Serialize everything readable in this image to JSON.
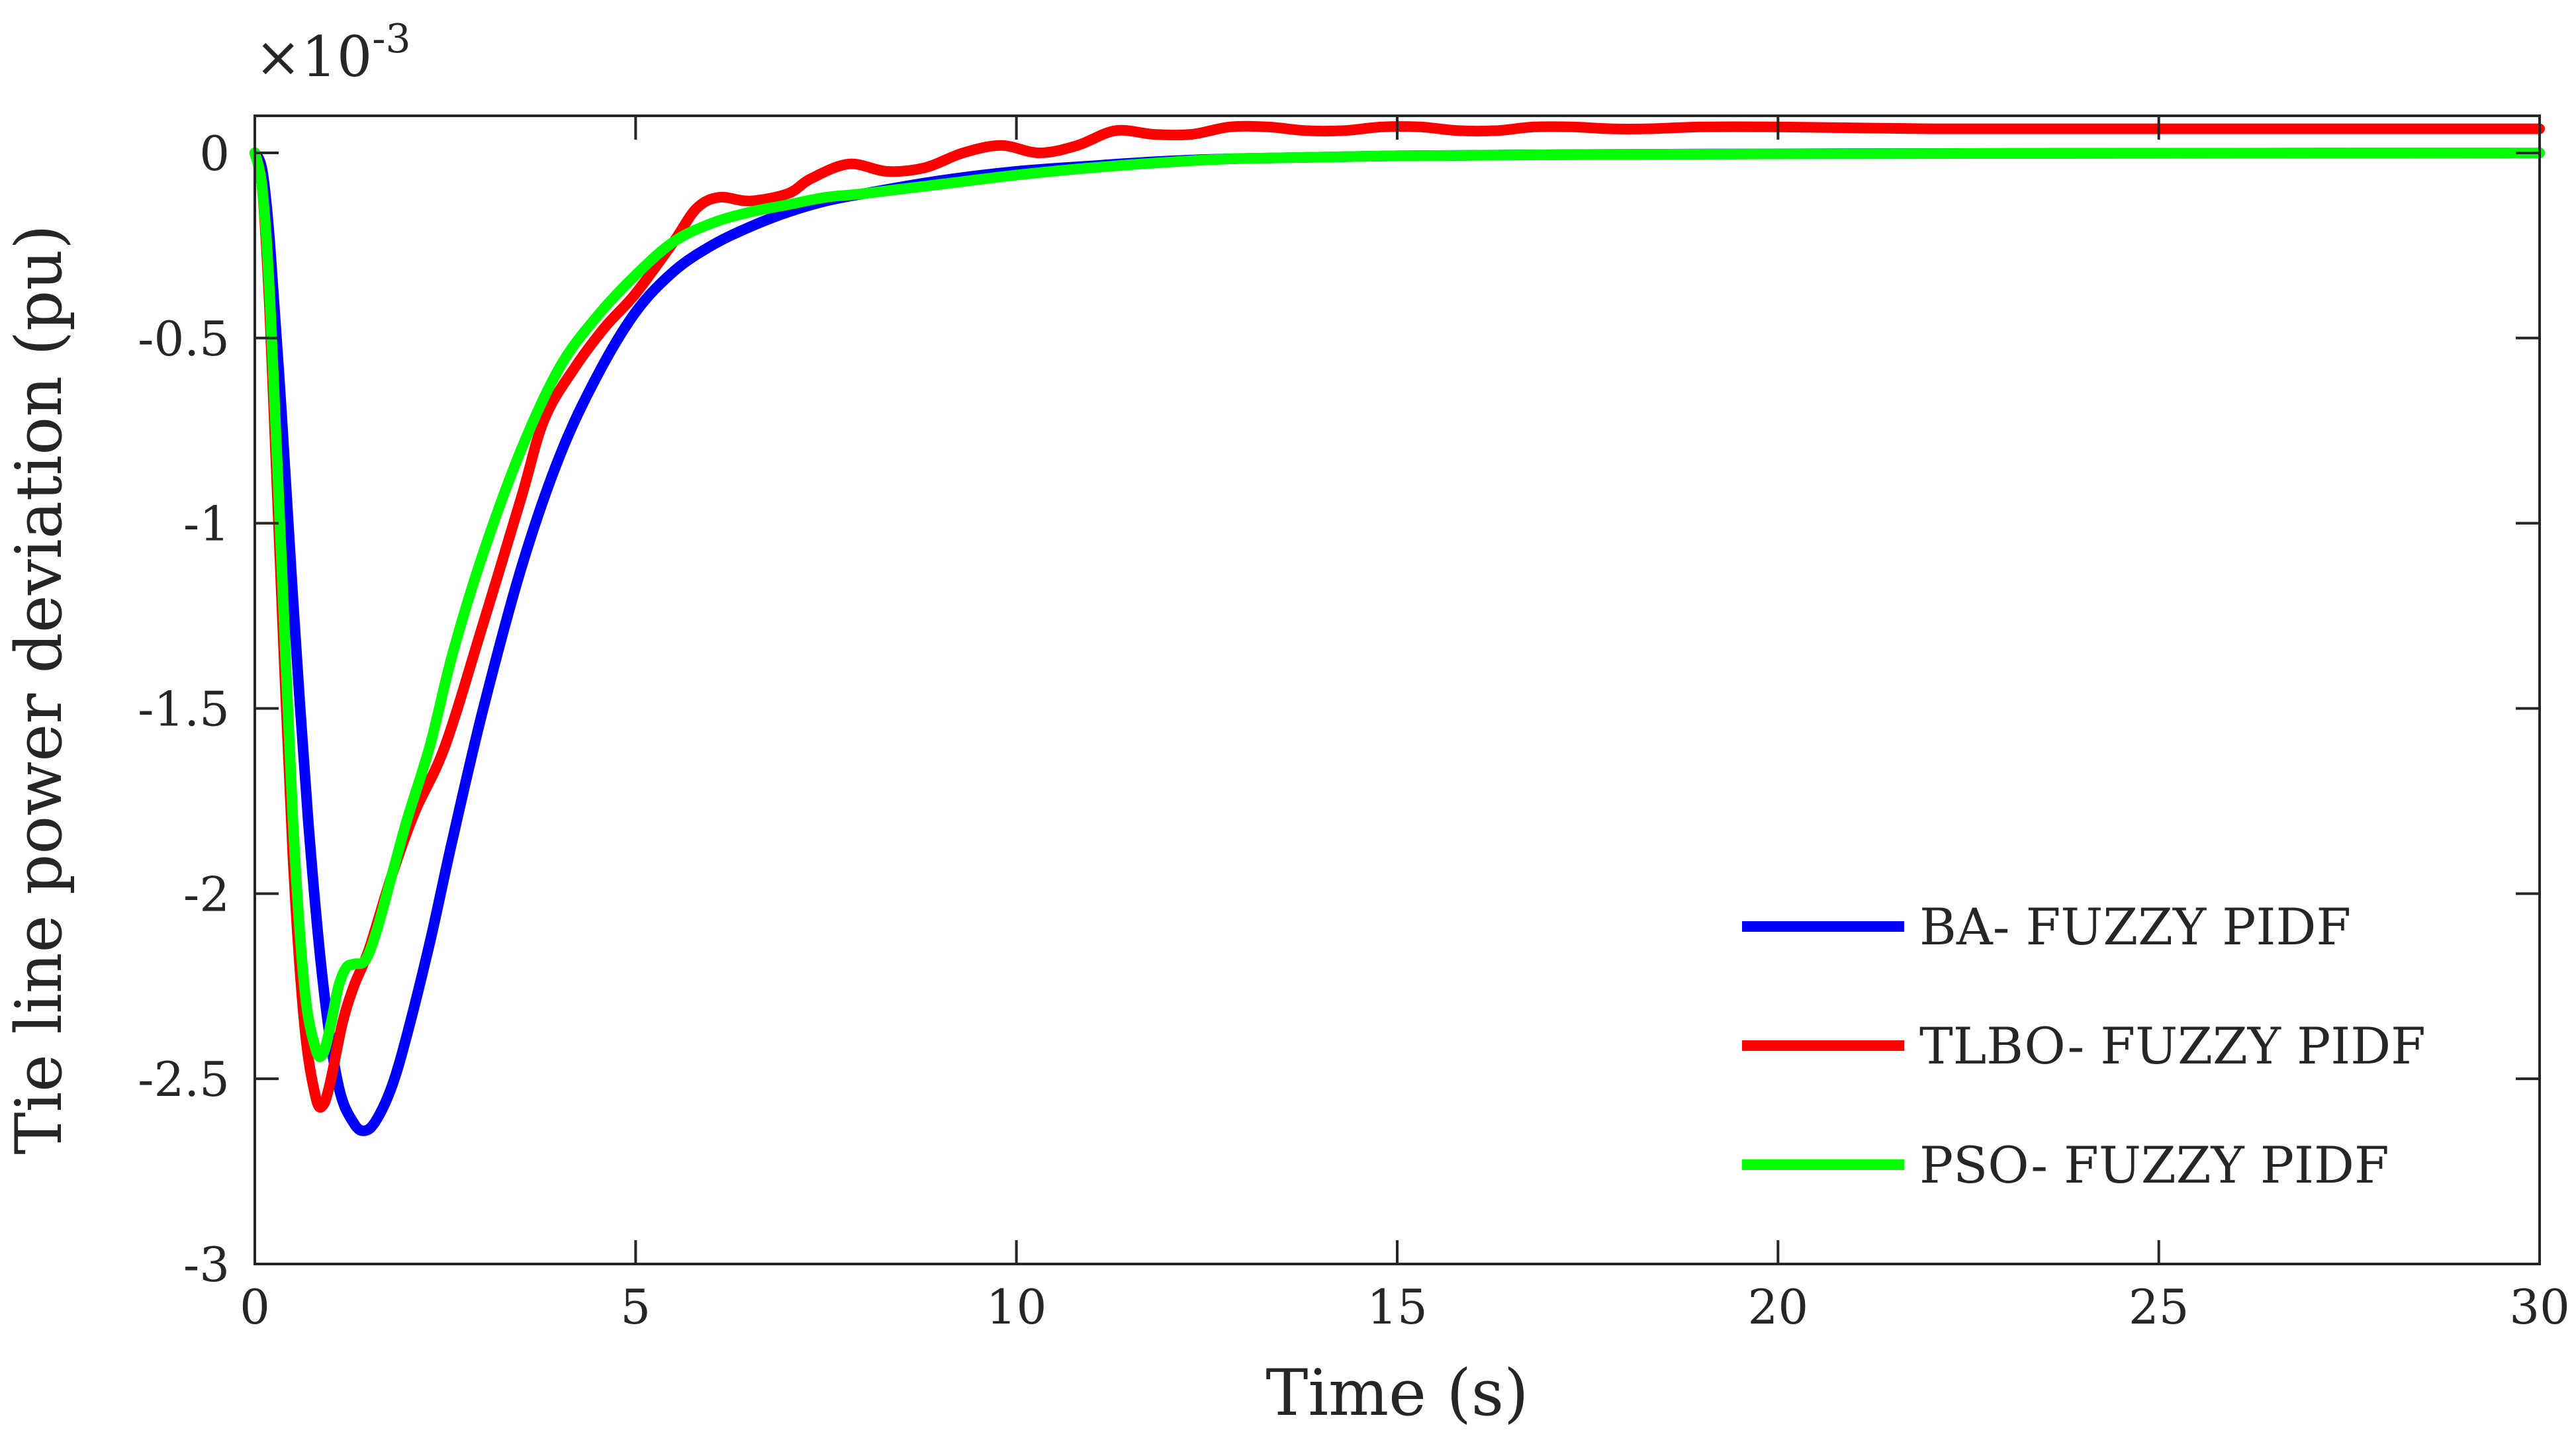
{
  "chart_data": {
    "type": "line",
    "title": "",
    "xlabel": "Time (s)",
    "ylabel": "Tie line power deviation (pu)",
    "y_multiplier_base": "×10",
    "y_multiplier_exponent": "-3",
    "xlim": [
      0,
      30
    ],
    "ylim": [
      -3,
      0.1
    ],
    "x_ticks": [
      0,
      5,
      10,
      15,
      20,
      25,
      30
    ],
    "x_tick_labels": [
      "0",
      "5",
      "10",
      "15",
      "20",
      "25",
      "30"
    ],
    "y_ticks": [
      0,
      -0.5,
      -1,
      -1.5,
      -2,
      -2.5,
      -3
    ],
    "y_tick_labels": [
      "0",
      "-0.5",
      "-1",
      "-1.5",
      "-2",
      "-2.5",
      "-3"
    ],
    "grid": false,
    "legend_position": "bottom-right",
    "series": [
      {
        "name": "BA- FUZZY PIDF",
        "color": "#0000ff",
        "x": [
          0,
          0.1,
          0.2,
          0.35,
          0.5,
          0.7,
          0.9,
          1.1,
          1.3,
          1.45,
          1.6,
          1.8,
          2.0,
          2.3,
          2.6,
          3.0,
          3.5,
          4.0,
          4.5,
          5.0,
          5.5,
          6.0,
          6.5,
          7.0,
          7.5,
          8.0,
          9.0,
          10.0,
          11.0,
          12.0,
          13.0,
          15.0,
          18.0,
          21.0,
          25.0,
          30.0
        ],
        "values": [
          0,
          -0.05,
          -0.25,
          -0.7,
          -1.2,
          -1.8,
          -2.25,
          -2.52,
          -2.62,
          -2.64,
          -2.61,
          -2.52,
          -2.38,
          -2.13,
          -1.85,
          -1.5,
          -1.12,
          -0.82,
          -0.6,
          -0.43,
          -0.32,
          -0.25,
          -0.2,
          -0.16,
          -0.13,
          -0.11,
          -0.075,
          -0.05,
          -0.035,
          -0.022,
          -0.015,
          -0.008,
          -0.004,
          -0.002,
          -0.001,
          0
        ]
      },
      {
        "name": "TLBO- FUZZY PIDF",
        "color": "#ff0000",
        "x": [
          0,
          0.1,
          0.2,
          0.35,
          0.5,
          0.65,
          0.8,
          0.9,
          1.0,
          1.15,
          1.3,
          1.5,
          1.8,
          2.1,
          2.5,
          3.0,
          3.5,
          3.8,
          4.2,
          4.6,
          5.0,
          5.5,
          5.8,
          6.1,
          6.5,
          7.0,
          7.3,
          7.8,
          8.3,
          8.8,
          9.3,
          9.8,
          10.3,
          10.8,
          11.3,
          11.8,
          12.3,
          12.8,
          13.3,
          13.8,
          14.3,
          14.8,
          15.3,
          15.8,
          16.3,
          16.8,
          17.3,
          17.8,
          18.3,
          19.0,
          20.0,
          22.0,
          25.0,
          30.0
        ],
        "values": [
          0,
          -0.1,
          -0.45,
          -1.2,
          -1.9,
          -2.35,
          -2.55,
          -2.57,
          -2.5,
          -2.35,
          -2.25,
          -2.15,
          -1.95,
          -1.78,
          -1.6,
          -1.27,
          -0.93,
          -0.72,
          -0.58,
          -0.47,
          -0.38,
          -0.24,
          -0.15,
          -0.12,
          -0.13,
          -0.11,
          -0.07,
          -0.03,
          -0.05,
          -0.04,
          0.0,
          0.02,
          0.0,
          0.02,
          0.06,
          0.05,
          0.05,
          0.07,
          0.07,
          0.06,
          0.06,
          0.07,
          0.07,
          0.06,
          0.06,
          0.07,
          0.07,
          0.065,
          0.065,
          0.07,
          0.07,
          0.065,
          0.065,
          0.065
        ]
      },
      {
        "name": "PSO- FUZZY PIDF",
        "color": "#00ff00",
        "x": [
          0,
          0.1,
          0.2,
          0.35,
          0.5,
          0.65,
          0.8,
          0.9,
          1.0,
          1.1,
          1.2,
          1.3,
          1.45,
          1.6,
          1.8,
          2.0,
          2.3,
          2.6,
          3.0,
          3.5,
          4.0,
          4.5,
          5.0,
          5.5,
          6.0,
          6.5,
          7.0,
          7.5,
          8.0,
          9.0,
          10.0,
          11.0,
          12.0,
          13.0,
          15.0,
          18.0,
          22.0,
          26.0,
          30.0
        ],
        "values": [
          0,
          -0.1,
          -0.4,
          -1.1,
          -1.8,
          -2.25,
          -2.42,
          -2.43,
          -2.35,
          -2.25,
          -2.2,
          -2.19,
          -2.18,
          -2.1,
          -1.95,
          -1.8,
          -1.6,
          -1.35,
          -1.08,
          -0.8,
          -0.58,
          -0.44,
          -0.33,
          -0.24,
          -0.19,
          -0.16,
          -0.14,
          -0.12,
          -0.11,
          -0.085,
          -0.06,
          -0.04,
          -0.025,
          -0.015,
          -0.008,
          -0.004,
          -0.002,
          -0.001,
          0
        ]
      }
    ]
  }
}
